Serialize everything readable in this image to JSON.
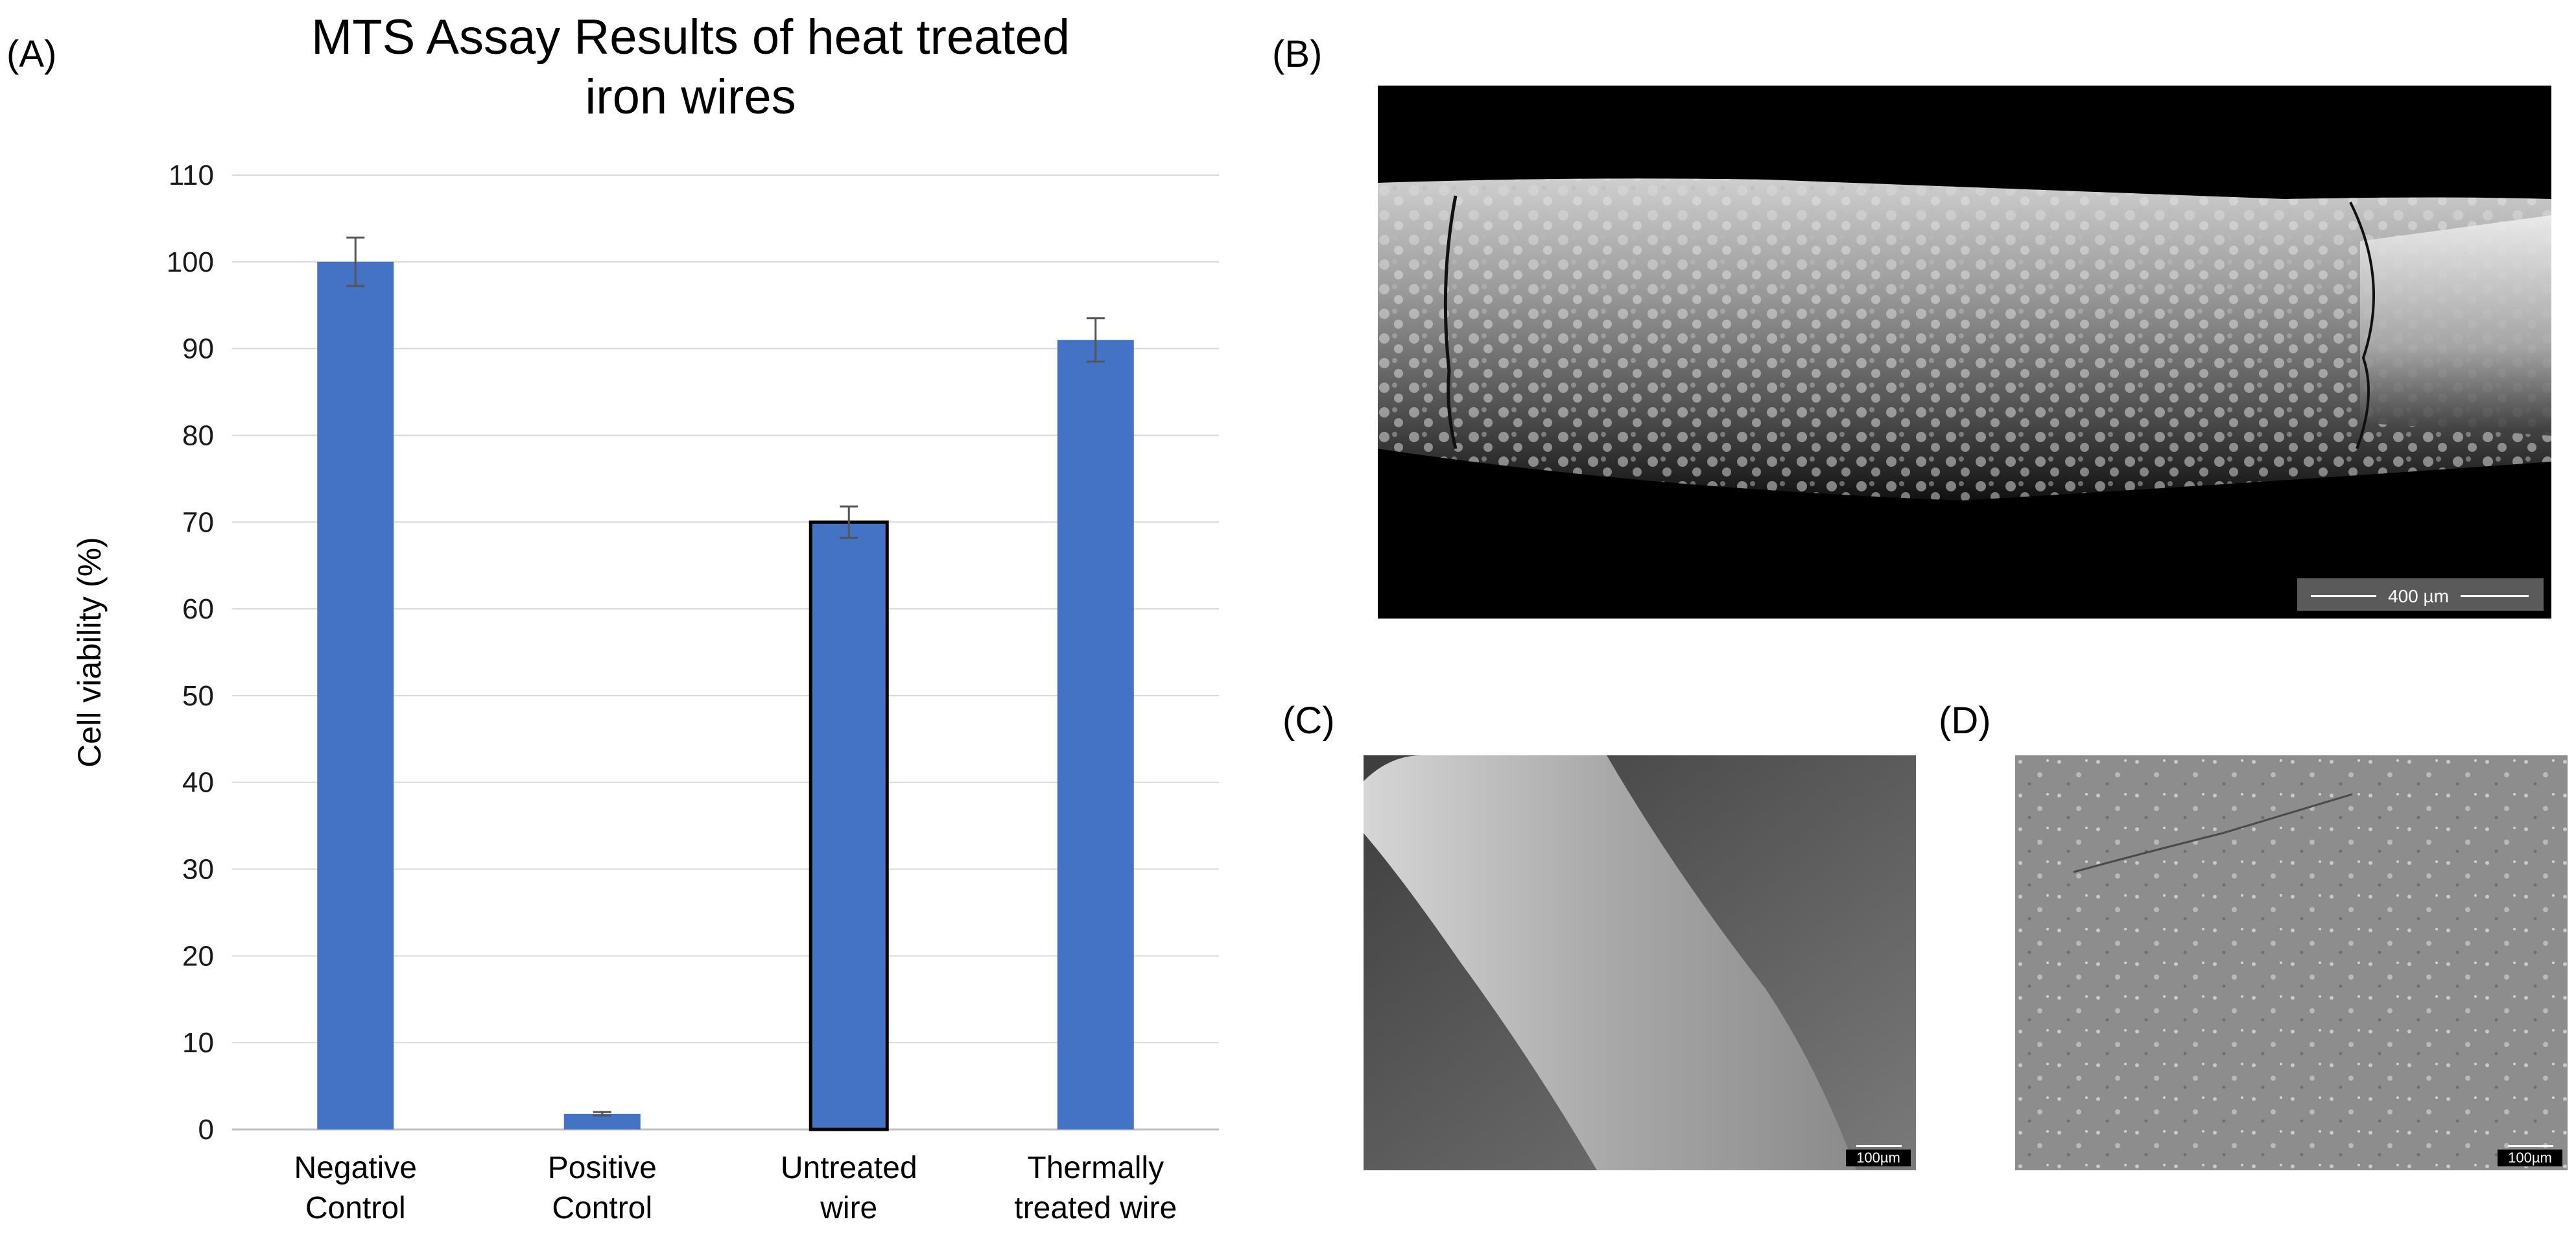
{
  "panel_labels": {
    "a": "(A)",
    "b": "(B)",
    "c": "(C)",
    "d": "(D)"
  },
  "chart_data": {
    "type": "bar",
    "title_lines": [
      "MTS Assay Results of heat treated",
      "iron wires"
    ],
    "ylabel": "Cell viability (%)",
    "xlabel": "",
    "ylim": [
      0,
      110
    ],
    "yticks": [
      0,
      10,
      20,
      30,
      40,
      50,
      60,
      70,
      80,
      90,
      100,
      110
    ],
    "grid": true,
    "categories": [
      [
        "Negative",
        "Control"
      ],
      [
        "Positive",
        "Control"
      ],
      [
        "Untreated",
        "wire"
      ],
      [
        "Thermally",
        "treated wire"
      ]
    ],
    "values": [
      100,
      1.8,
      70,
      91
    ],
    "errors": [
      2.8,
      0.2,
      1.8,
      2.5
    ],
    "bar_color": "#4472C4",
    "outlined_bar_index": 2
  },
  "micrographs": {
    "b_scale": "400 µm",
    "c_scale": "100µm",
    "d_scale": "100µm"
  }
}
